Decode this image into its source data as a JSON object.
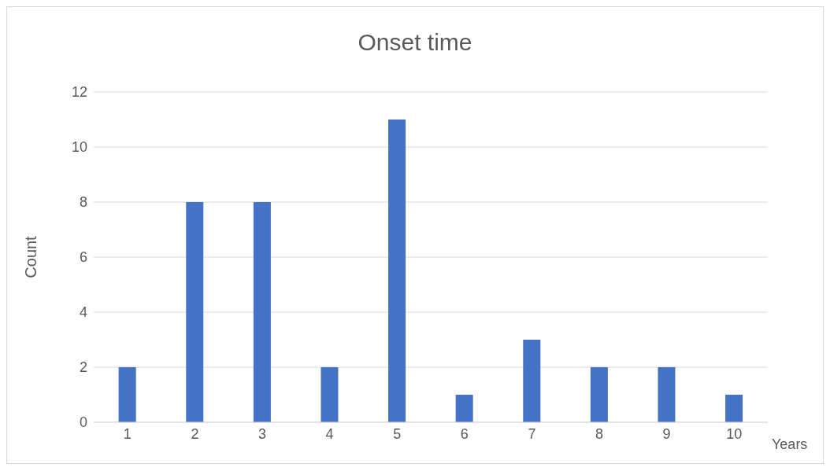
{
  "chart_data": {
    "type": "bar",
    "title": "Onset time",
    "xlabel": "Years",
    "ylabel": "Count",
    "categories": [
      "1",
      "2",
      "3",
      "4",
      "5",
      "6",
      "7",
      "8",
      "9",
      "10"
    ],
    "values": [
      2,
      8,
      8,
      2,
      11,
      1,
      3,
      2,
      2,
      1
    ],
    "color": "#4472c4",
    "ylim": [
      0,
      12
    ],
    "yticks": [
      0,
      2,
      4,
      6,
      8,
      10,
      12
    ],
    "grid": "y"
  }
}
